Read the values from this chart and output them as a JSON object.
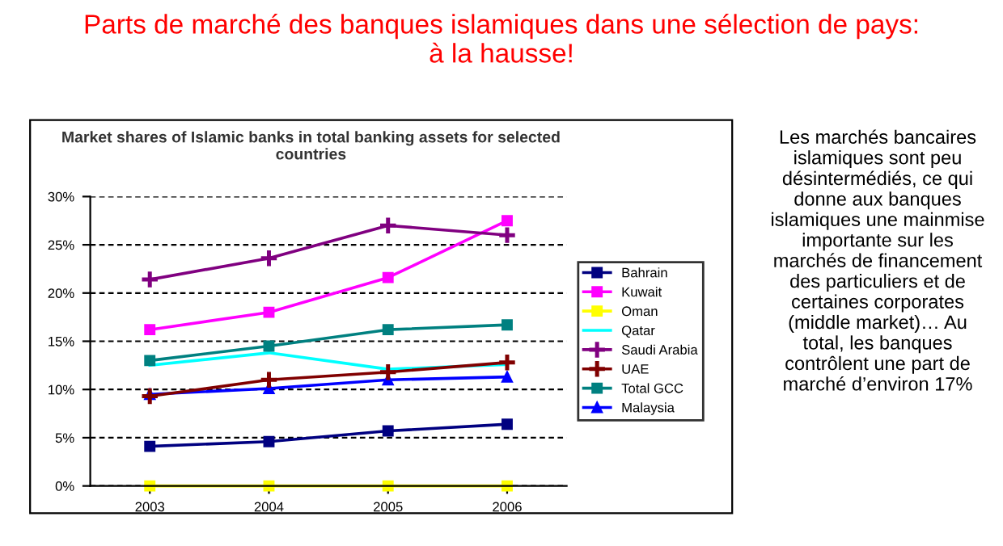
{
  "chart_data": {
    "type": "line",
    "title": "Parts de marché des banques islamiques dans une sélection de pays:\nà la hausse!",
    "subtitle": "Market shares of Islamic banks in total banking assets for selected\ncountries",
    "categories": [
      "2003",
      "2004",
      "2005",
      "2006"
    ],
    "series": [
      {
        "name": "Bahrain",
        "color": "#000080",
        "marker": "square",
        "values": [
          4.1,
          4.6,
          5.7,
          6.4
        ]
      },
      {
        "name": "Kuwait",
        "color": "#ff00ff",
        "marker": "square",
        "values": [
          16.2,
          18.0,
          21.6,
          27.5
        ]
      },
      {
        "name": "Oman",
        "color": "#ffff00",
        "marker": "square",
        "values": [
          0,
          0,
          0,
          0
        ]
      },
      {
        "name": "Qatar",
        "color": "#00ffff",
        "marker": "none",
        "values": [
          12.5,
          13.8,
          12.1,
          12.6
        ]
      },
      {
        "name": "Saudi Arabia",
        "color": "#800080",
        "marker": "cross",
        "values": [
          21.4,
          23.6,
          27.0,
          26.0
        ]
      },
      {
        "name": "UAE",
        "color": "#800000",
        "marker": "cross",
        "values": [
          9.3,
          11.0,
          11.8,
          12.8
        ]
      },
      {
        "name": "Total GCC",
        "color": "#008080",
        "marker": "square",
        "values": [
          13.0,
          14.5,
          16.2,
          16.7
        ]
      },
      {
        "name": "Malaysia",
        "color": "#0000ff",
        "marker": "triangle",
        "values": [
          9.5,
          10.1,
          11.0,
          11.3
        ]
      }
    ],
    "ylim": [
      0,
      30
    ],
    "yticks": [
      {
        "value": 0,
        "label": "0%"
      },
      {
        "value": 5,
        "label": "5%"
      },
      {
        "value": 10,
        "label": "10%"
      },
      {
        "value": 15,
        "label": "15%"
      },
      {
        "value": 20,
        "label": "20%"
      },
      {
        "value": 25,
        "label": "25%"
      },
      {
        "value": 30,
        "label": "30%"
      }
    ],
    "grid": "y",
    "legend": "right",
    "annotations": [
      "Les marchés bancaires\nislamiques sont peu\ndésintermédiés, ce qui\ndonne aux banques\nislamiques une mainmise\nimportante sur les\nmarchés de financement\ndes particuliers et de\ncertaines corporates\n(middle market)… Au\ntotal, les banques\ncontrôlent une part de\nmarché d’environ 17%"
    ]
  }
}
